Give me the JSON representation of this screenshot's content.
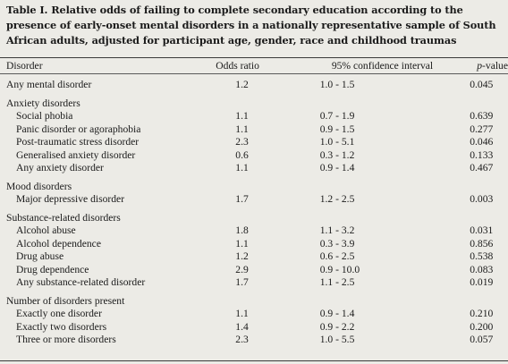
{
  "caption": "Table I. Relative odds of failing to complete secondary education according to the presence of early-onset mental disorders in  a nationally representative sample of South African adults, adjusted for participant age, gender, race and childhood traumas",
  "headers": {
    "disorder": "Disorder",
    "odds_ratio": "Odds ratio",
    "ci": "95% confidence interval",
    "p_italic": "p",
    "p_suffix": "-value"
  },
  "rows": {
    "any_mental": {
      "label": "Any mental disorder",
      "or": "1.2",
      "ci": "1.0 - 1.5",
      "p": "0.045"
    },
    "anxiety_heading": "Anxiety disorders",
    "social_phobia": {
      "label": "Social phobia",
      "or": "1.1",
      "ci": "0.7 - 1.9",
      "p": "0.639"
    },
    "panic": {
      "label": "Panic disorder or agoraphobia",
      "or": "1.1",
      "ci": "0.9 - 1.5",
      "p": "0.277"
    },
    "ptsd": {
      "label": "Post-traumatic stress disorder",
      "or": "2.3",
      "ci": "1.0 - 5.1",
      "p": "0.046"
    },
    "gad": {
      "label": "Generalised anxiety disorder",
      "or": "0.6",
      "ci": "0.3 - 1.2",
      "p": "0.133"
    },
    "any_anxiety": {
      "label": "Any anxiety disorder",
      "or": "1.1",
      "ci": "0.9 - 1.4",
      "p": "0.467"
    },
    "mood_heading": "Mood disorders",
    "mdd": {
      "label": "Major depressive disorder",
      "or": "1.7",
      "ci": "1.2 - 2.5",
      "p": "0.003"
    },
    "substance_heading": "Substance-related disorders",
    "alcohol_abuse": {
      "label": "Alcohol abuse",
      "or": "1.8",
      "ci": "1.1 - 3.2",
      "p": "0.031"
    },
    "alcohol_dependence": {
      "label": "Alcohol dependence",
      "or": "1.1",
      "ci": "0.3 - 3.9",
      "p": "0.856"
    },
    "drug_abuse": {
      "label": "Drug abuse",
      "or": "1.2",
      "ci": "0.6 - 2.5",
      "p": "0.538"
    },
    "drug_dependence": {
      "label": "Drug dependence",
      "or": "2.9",
      "ci": "0.9 - 10.0",
      "p": "0.083"
    },
    "any_substance": {
      "label": "Any substance-related disorder",
      "or": "1.7",
      "ci": "1.1 - 2.5",
      "p": "0.019"
    },
    "number_heading": "Number of disorders present",
    "one": {
      "label": "Exactly one disorder",
      "or": "1.1",
      "ci": "0.9 - 1.4",
      "p": "0.210"
    },
    "two": {
      "label": "Exactly two disorders",
      "or": "1.4",
      "ci": "0.9 - 2.2",
      "p": "0.200"
    },
    "three_plus": {
      "label": "Three or more disorders",
      "or": "2.3",
      "ci": "1.0 - 5.5",
      "p": "0.057"
    }
  }
}
